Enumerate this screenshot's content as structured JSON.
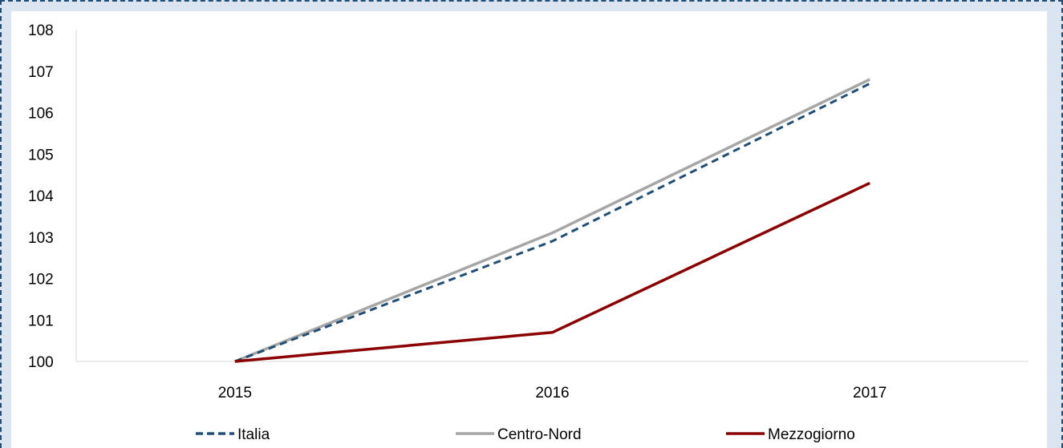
{
  "chart_data": {
    "type": "line",
    "x": [
      "2015",
      "2016",
      "2017"
    ],
    "ylim": [
      100,
      108
    ],
    "yticks": [
      100,
      101,
      102,
      103,
      104,
      105,
      106,
      107,
      108
    ],
    "grid": false,
    "legend_position": "bottom",
    "series": [
      {
        "name": "Italia",
        "values": [
          100.0,
          102.9,
          106.7
        ],
        "color": "#1f4e79",
        "style": "dashed"
      },
      {
        "name": "Centro-Nord",
        "values": [
          100.0,
          103.1,
          106.8
        ],
        "color": "#a6a6a6",
        "style": "solid"
      },
      {
        "name": "Mezzogiorno",
        "values": [
          100.0,
          100.7,
          104.3
        ],
        "color": "#8b0000",
        "style": "solid"
      }
    ]
  }
}
